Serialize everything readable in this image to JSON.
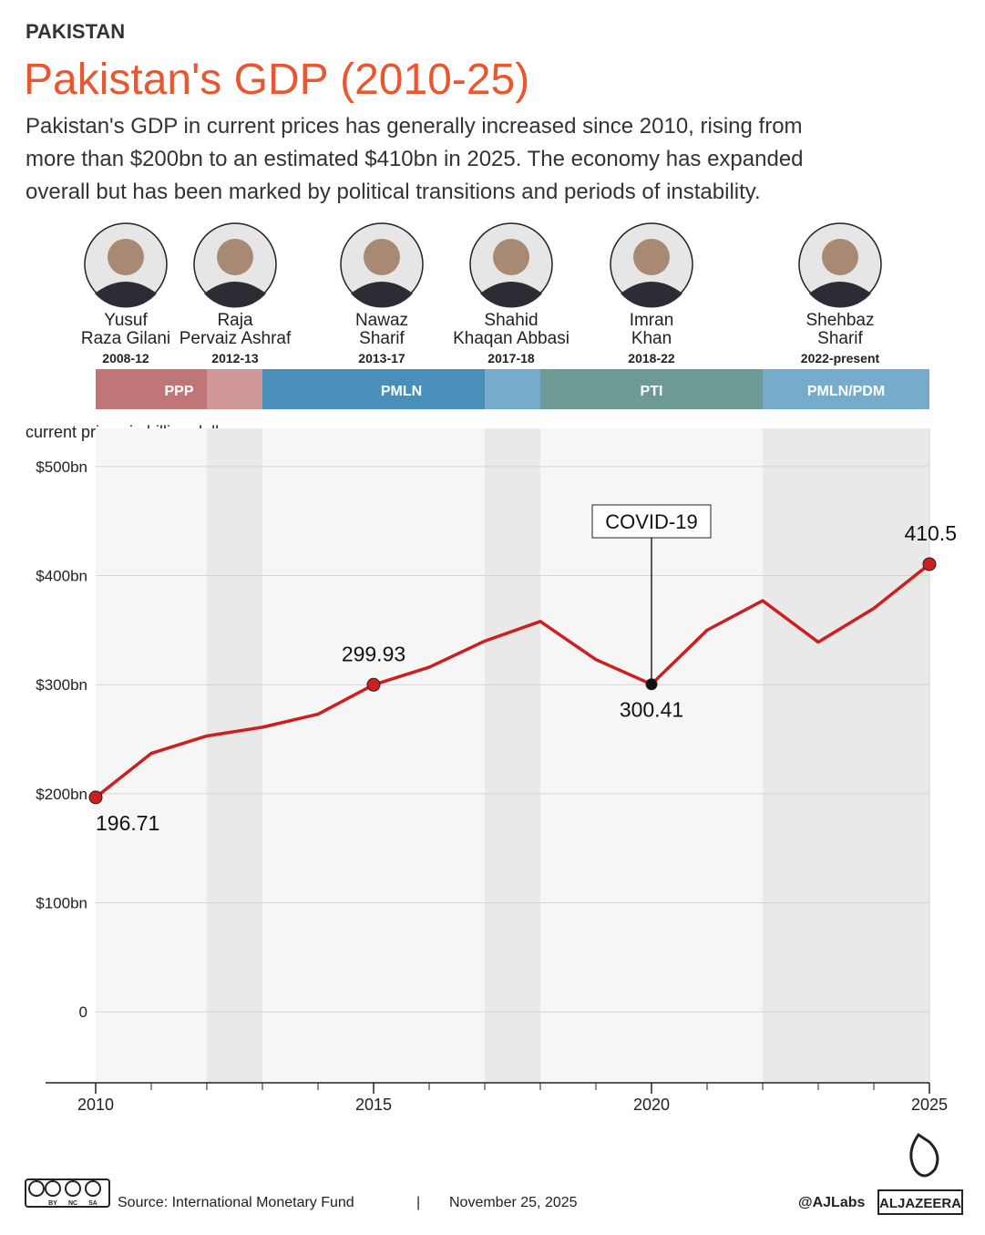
{
  "chart_data": {
    "type": "line",
    "kicker": "PAKISTAN",
    "title": "Pakistan's GDP (2010-25)",
    "subtitle": [
      "Pakistan's GDP in current prices has generally increased since 2010, rising from",
      "more than $200bn to an estimated $410bn in 2025. The economy has expanded",
      "overall but has been marked by political transitions and periods of instability."
    ],
    "y_axis_label": "current prices in billion dollars",
    "x": [
      2010,
      2011,
      2012,
      2013,
      2014,
      2015,
      2016,
      2017,
      2018,
      2019,
      2020,
      2021,
      2022,
      2023,
      2024,
      2025
    ],
    "values": [
      196.71,
      237,
      253,
      261,
      273,
      299.93,
      316,
      340,
      358,
      323,
      300.41,
      350,
      377,
      339,
      370,
      410.5
    ],
    "value_labels": [
      "196.71",
      null,
      null,
      null,
      null,
      "299.93",
      null,
      null,
      null,
      null,
      "300.41",
      null,
      null,
      null,
      null,
      "410.5"
    ],
    "color": "#cc1f1f",
    "xlim": [
      2010,
      2025
    ],
    "xticks": [
      2010,
      2015,
      2020,
      2025
    ],
    "ylim": [
      -65,
      535
    ],
    "yticks": [
      0,
      {
        "value": 100,
        "label": "$100bn"
      },
      {
        "value": 200,
        "label": "$200bn"
      },
      {
        "value": 300,
        "label": "$300bn"
      },
      {
        "value": 400,
        "label": "$400bn"
      },
      {
        "value": 500,
        "label": "$500bn"
      }
    ],
    "grid": true,
    "annotations": [
      {
        "text": "COVID-19",
        "x": 2020
      }
    ],
    "parties": [
      {
        "name": "PPP",
        "start": 2010,
        "end": 2013,
        "color": "#c07576"
      },
      {
        "name": "PMLN",
        "start": 2013,
        "end": 2018,
        "color": "#4a8fba"
      },
      {
        "name": "PTI",
        "start": 2018,
        "end": 2022,
        "color": "#6e9a95"
      },
      {
        "name": "PMLN/PDM",
        "start": 2022,
        "end": 2025,
        "color": "#4a8fba"
      }
    ],
    "highlight_periods": [
      {
        "start": 2012,
        "end": 2013
      },
      {
        "start": 2017,
        "end": 2018
      },
      {
        "start": 2022,
        "end": 2025
      }
    ],
    "leaders": [
      {
        "name": [
          "Yusuf",
          "Raza Gilani"
        ],
        "years": "2008-12"
      },
      {
        "name": [
          "Raja",
          "Pervaiz Ashraf"
        ],
        "years": "2012-13"
      },
      {
        "name": [
          "Nawaz",
          "Sharif"
        ],
        "years": "2013-17"
      },
      {
        "name": [
          "Shahid",
          "Khaqan Abbasi"
        ],
        "years": "2017-18"
      },
      {
        "name": [
          "Imran",
          "Khan"
        ],
        "years": "2018-22"
      },
      {
        "name": [
          "Shehbaz",
          "Sharif"
        ],
        "years": "2022-present"
      }
    ],
    "footer": {
      "license": [
        "BY",
        "NC",
        "SA"
      ],
      "source": "Source:  International Monetary Fund",
      "separator": "|",
      "date": "November 25, 2025",
      "handle": "@AJLabs",
      "brand": "ALJAZEERA"
    }
  }
}
